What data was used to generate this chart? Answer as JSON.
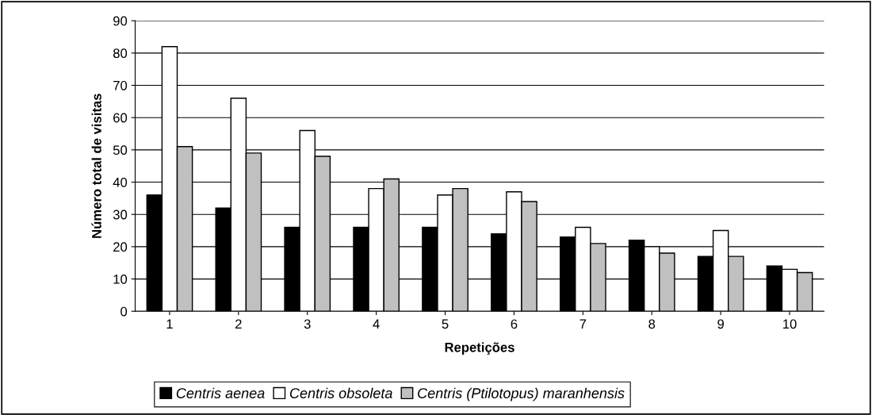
{
  "chart_data": {
    "type": "bar",
    "xlabel": "Repetições",
    "ylabel": "Número total de visitas",
    "categories": [
      "1",
      "2",
      "3",
      "4",
      "5",
      "6",
      "7",
      "8",
      "9",
      "10"
    ],
    "series": [
      {
        "name": "Centris aenea",
        "color": "#000000",
        "values": [
          36,
          32,
          26,
          26,
          26,
          24,
          23,
          22,
          17,
          14
        ]
      },
      {
        "name": "Centris obsoleta",
        "color": "#ffffff",
        "values": [
          82,
          66,
          56,
          38,
          36,
          37,
          26,
          20,
          25,
          13
        ]
      },
      {
        "name": "Centris (Ptilotopus) maranhensis",
        "color": "#c0c0c0",
        "values": [
          51,
          49,
          48,
          41,
          38,
          34,
          21,
          18,
          17,
          12
        ]
      }
    ],
    "ylim": [
      0,
      90
    ],
    "yticks": [
      0,
      10,
      20,
      30,
      40,
      50,
      60,
      70,
      80,
      90
    ],
    "grid": "y",
    "legend": "bottom"
  }
}
